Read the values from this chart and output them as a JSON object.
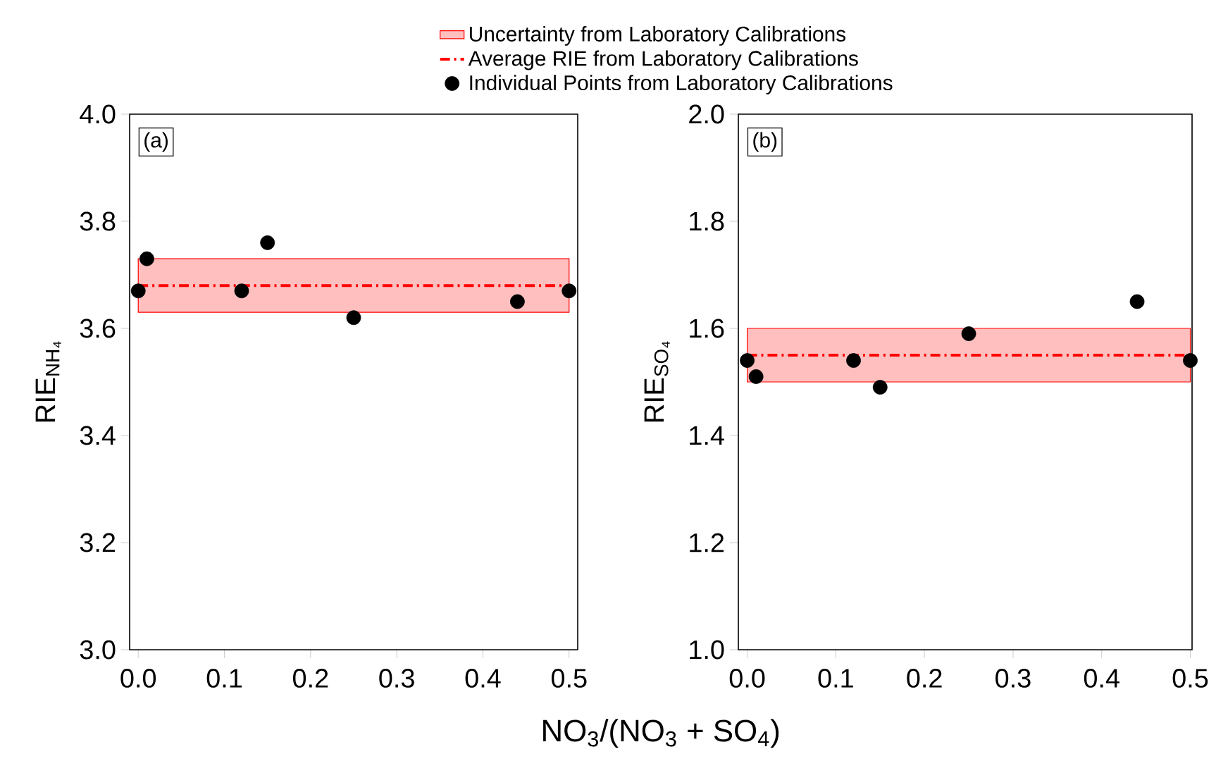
{
  "chart_data": [
    {
      "type": "scatter",
      "xlabel": "NO$_{3}$/(NO$_{3}$ + SO$_{4}$)",
      "ylabel": "RIE$_{NH₄}$",
      "marker": "circle",
      "legend": "top",
      "xlim": [
        -0.01,
        0.51
      ],
      "ylim": [
        3.0,
        4.0
      ],
      "xticks": [
        {
          "value": 0,
          "label": "0.0"
        },
        0.1,
        0.2,
        0.3,
        0.4,
        0.5
      ],
      "yticks": [
        {
          "value": 3,
          "label": "3.0"
        },
        3.2,
        3.4,
        3.6,
        3.8,
        {
          "value": 4,
          "label": "4.0"
        }
      ],
      "series": [
        {
          "name": "Individual Points from Laboratory Calibrations",
          "color": "#000000",
          "x": [
            0,
            0.01,
            0.12,
            0.15,
            0.25,
            0.44,
            0.5
          ],
          "values": [
            3.67,
            3.73,
            3.67,
            3.76,
            3.62,
            3.65,
            3.67
          ]
        }
      ],
      "bands": [
        {
          "axis": "y",
          "from": 3.63,
          "to": 3.73,
          "label": "Uncertainty from Laboratory Calibrations",
          "color": "#ffbfbf"
        }
      ],
      "ref_lines": [
        {
          "axis": "y",
          "value": 3.68,
          "label": "Average RIE from Laboratory Calibrations",
          "color": "#ff0000",
          "line_style": "dashdot"
        }
      ],
      "annotations": [
        "(a)"
      ]
    },
    {
      "type": "scatter",
      "ylabel": "RIE$_{SO₄}$",
      "marker": "circle",
      "xlim": [
        -0.01,
        0.502
      ],
      "ylim": [
        1.0,
        2.0
      ],
      "xticks": [
        {
          "value": 0,
          "label": "0.0"
        },
        0.1,
        0.2,
        0.3,
        0.4,
        0.5
      ],
      "yticks": [
        {
          "value": 1,
          "label": "1.0"
        },
        1.2,
        1.4,
        1.6,
        1.8,
        {
          "value": 2,
          "label": "2.0"
        }
      ],
      "series": [
        {
          "color": "#000000",
          "x": [
            0,
            0.01,
            0.12,
            0.15,
            0.25,
            0.44,
            0.5
          ],
          "values": [
            1.54,
            1.51,
            1.54,
            1.49,
            1.59,
            1.65,
            1.54
          ]
        }
      ],
      "bands": [
        {
          "axis": "y",
          "from": 1.5,
          "to": 1.6,
          "color": "#ffbfbf"
        }
      ],
      "ref_lines": [
        {
          "axis": "y",
          "value": 1.55,
          "color": "#ff0000",
          "line_style": "dashdot"
        }
      ],
      "annotations": [
        "(b)"
      ]
    }
  ]
}
